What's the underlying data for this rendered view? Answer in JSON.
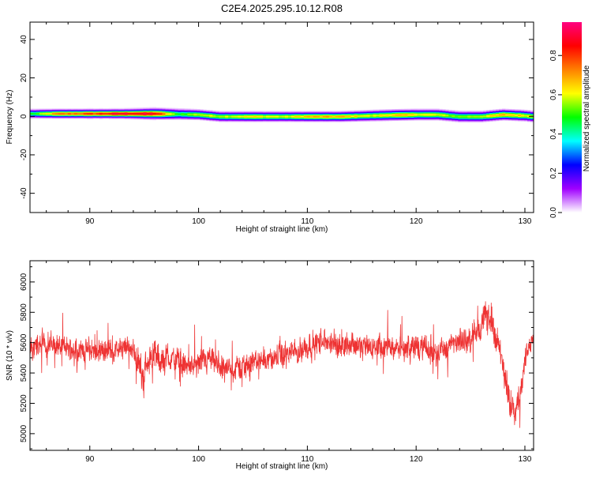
{
  "title": "C2E4.2025.295.10.12.R08",
  "chart_data": [
    {
      "type": "heatmap",
      "xlabel": "Height of straight line (km)",
      "ylabel": "Frequency (Hz)",
      "xlim": [
        84.5,
        130.8
      ],
      "ylim": [
        -50,
        49
      ],
      "x_ticks": [
        90,
        100,
        110,
        120,
        130
      ],
      "y_ticks": [
        -40,
        -20,
        0,
        20,
        40
      ],
      "colorbar": {
        "label": "Normalized spectral amplitude",
        "range": [
          0,
          0.97
        ],
        "ticks": [
          0.0,
          0.2,
          0.4,
          0.6,
          0.8
        ],
        "tick_labels": [
          "0.0",
          "0.2",
          "0.4",
          "0.6",
          "0.8"
        ],
        "colormap": [
          "#ffffff",
          "#a000ff",
          "#0000ff",
          "#00ffff",
          "#00ff00",
          "#ffff00",
          "#ff8000",
          "#ff0000",
          "#ff0080"
        ]
      },
      "ridge": {
        "x": [
          85,
          87,
          90,
          93,
          96,
          98,
          100,
          102,
          105,
          108,
          110,
          113,
          116,
          118,
          120,
          122,
          124,
          126,
          128,
          130,
          130.8
        ],
        "center_hz": [
          1.5,
          1.5,
          1.5,
          1.5,
          1.5,
          1.3,
          1.0,
          0.0,
          0.0,
          0.0,
          0.0,
          0.0,
          0.5,
          0.8,
          1.0,
          1.0,
          0.0,
          0.0,
          1.0,
          0.5,
          0.0
        ],
        "peak_amplitude": [
          0.5,
          0.75,
          0.82,
          0.92,
          0.9,
          0.5,
          0.6,
          0.6,
          0.65,
          0.6,
          0.7,
          0.7,
          0.6,
          0.7,
          0.65,
          0.6,
          0.55,
          0.6,
          0.7,
          0.65,
          0.6
        ],
        "half_width_hz": [
          2.5,
          2.5,
          2.5,
          2.5,
          3.0,
          3.0,
          2.8,
          2.8,
          2.8,
          2.8,
          2.8,
          2.8,
          3.0,
          3.0,
          3.0,
          3.0,
          3.0,
          3.0,
          3.0,
          3.0,
          3.0
        ]
      }
    },
    {
      "type": "line",
      "xlabel": "Height of straight line (km)",
      "ylabel": "SNR (10 * v/v)",
      "xlim": [
        84.5,
        130.8
      ],
      "ylim": [
        4890,
        6140
      ],
      "x_ticks": [
        90,
        100,
        110,
        120,
        130
      ],
      "y_ticks": [
        5000,
        5200,
        5400,
        5600,
        5800,
        6000
      ],
      "color": "#ee3333",
      "series": [
        {
          "x": [
            84.5,
            86,
            88,
            90,
            92,
            94,
            94.8,
            95.2,
            96,
            96.5,
            97,
            98,
            99,
            100,
            101,
            102,
            103,
            104,
            105,
            106,
            107,
            108,
            109,
            110,
            111,
            112,
            113,
            114,
            115,
            116,
            117,
            118,
            119,
            120,
            121,
            122,
            123,
            124,
            125,
            126,
            126.5,
            127,
            127.5,
            128,
            128.5,
            129,
            129.5,
            130,
            130.8
          ],
          "mean": [
            5560,
            5600,
            5560,
            5550,
            5550,
            5560,
            5380,
            5460,
            5540,
            5450,
            5510,
            5480,
            5440,
            5450,
            5480,
            5440,
            5420,
            5440,
            5470,
            5490,
            5500,
            5520,
            5540,
            5580,
            5600,
            5600,
            5580,
            5600,
            5570,
            5570,
            5560,
            5580,
            5560,
            5570,
            5560,
            5540,
            5580,
            5600,
            5630,
            5720,
            5780,
            5740,
            5600,
            5420,
            5240,
            5180,
            5240,
            5480,
            5660
          ],
          "noise_amplitude": [
            110,
            110,
            100,
            100,
            100,
            100,
            140,
            120,
            120,
            130,
            120,
            110,
            110,
            110,
            110,
            110,
            110,
            110,
            110,
            110,
            110,
            110,
            110,
            110,
            110,
            110,
            110,
            110,
            110,
            110,
            110,
            110,
            110,
            110,
            110,
            110,
            110,
            110,
            110,
            120,
            150,
            140,
            130,
            130,
            150,
            150,
            120,
            100,
            80
          ]
        }
      ]
    }
  ]
}
